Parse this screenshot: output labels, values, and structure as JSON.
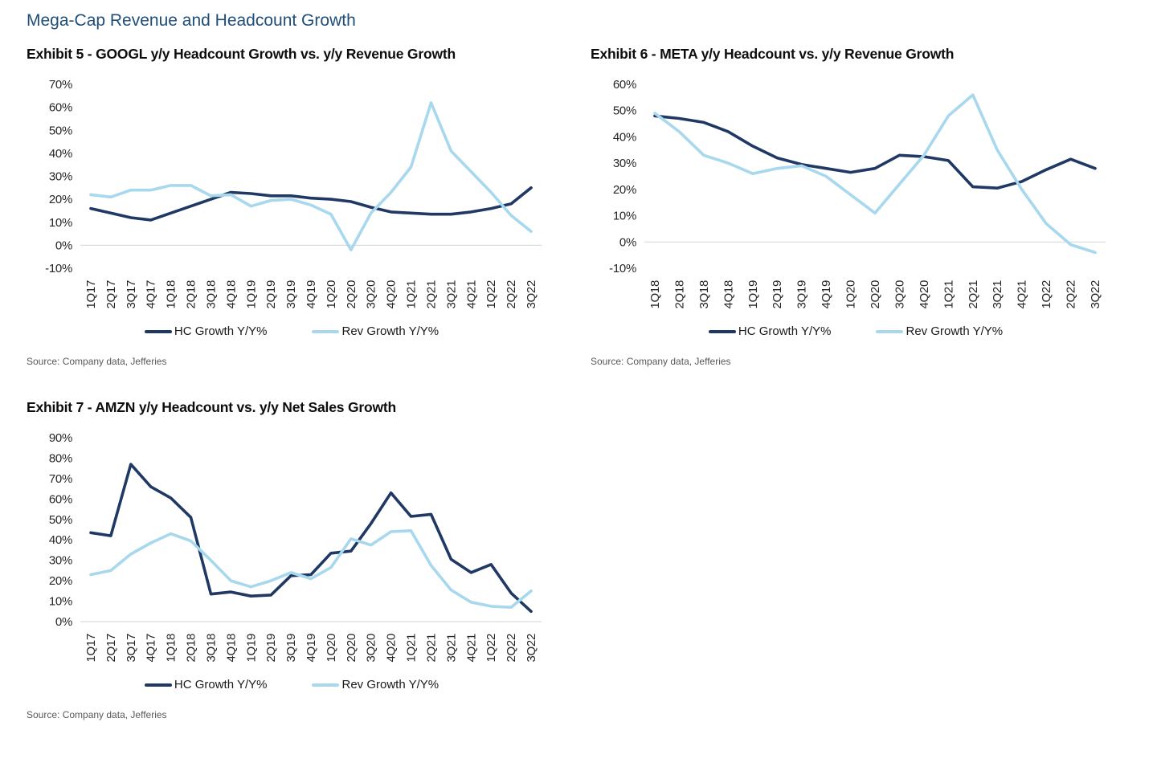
{
  "page": {
    "title": "Mega-Cap Revenue and Headcount Growth",
    "accent_color": "#1f4e79",
    "grid_color": "#d9d9d9"
  },
  "chart_data": [
    {
      "type": "line",
      "title": "Exhibit 5 - GOOGL y/y Headcount Growth vs. y/y Revenue Growth",
      "source": "Source: Company data, Jefferies",
      "legend_position": "bottom",
      "grid": "baseline at 0% only",
      "ylim": [
        -10,
        70
      ],
      "ystep": 10,
      "categories": [
        "1Q17",
        "2Q17",
        "3Q17",
        "4Q17",
        "1Q18",
        "2Q18",
        "3Q18",
        "4Q18",
        "1Q19",
        "2Q19",
        "3Q19",
        "4Q19",
        "1Q20",
        "2Q20",
        "3Q20",
        "4Q20",
        "1Q21",
        "2Q21",
        "3Q21",
        "4Q21",
        "1Q22",
        "2Q22",
        "3Q22"
      ],
      "series": [
        {
          "name": "HC Growth Y/Y%",
          "color": "#1f3864",
          "values": [
            16,
            14,
            12,
            11,
            14,
            17,
            20,
            23,
            22.5,
            21.5,
            21.5,
            20.5,
            20,
            19,
            16.5,
            14.5,
            14,
            13.5,
            13.5,
            14.5,
            16,
            18,
            25
          ]
        },
        {
          "name": "Rev Growth Y/Y%",
          "color": "#a7d8ee",
          "values": [
            22,
            21,
            24,
            24,
            26,
            26,
            21.5,
            22,
            17,
            19.5,
            20,
            17.5,
            13.5,
            -2,
            14,
            23,
            34,
            62,
            41,
            32,
            23,
            13,
            6
          ]
        }
      ]
    },
    {
      "type": "line",
      "title": "Exhibit 6 - META y/y Headcount vs. y/y Revenue Growth",
      "source": "Source: Company data, Jefferies",
      "legend_position": "bottom",
      "grid": "baseline at 0% only",
      "ylim": [
        -10,
        60
      ],
      "ystep": 10,
      "categories": [
        "1Q18",
        "2Q18",
        "3Q18",
        "4Q18",
        "1Q19",
        "2Q19",
        "3Q19",
        "4Q19",
        "1Q20",
        "2Q20",
        "3Q20",
        "4Q20",
        "1Q21",
        "2Q21",
        "3Q21",
        "4Q21",
        "1Q22",
        "2Q22",
        "3Q22"
      ],
      "series": [
        {
          "name": "HC Growth Y/Y%",
          "color": "#1f3864",
          "values": [
            48,
            47,
            45.5,
            42,
            36.5,
            32,
            29.5,
            28,
            26.5,
            28,
            33,
            32.5,
            31,
            21,
            20.5,
            23,
            27.5,
            31.5,
            28
          ]
        },
        {
          "name": "Rev Growth Y/Y%",
          "color": "#a7d8ee",
          "values": [
            49,
            42,
            33,
            30,
            26,
            28,
            29,
            25,
            18,
            11,
            22,
            33,
            48,
            56,
            35,
            20,
            7,
            -1,
            -4
          ]
        }
      ]
    },
    {
      "type": "line",
      "title": "Exhibit 7 - AMZN y/y Headcount vs. y/y Net Sales Growth",
      "source": "Source: Company data, Jefferies",
      "legend_position": "bottom",
      "grid": "baseline at 0% only",
      "ylim": [
        0,
        90
      ],
      "ystep": 10,
      "categories": [
        "1Q17",
        "2Q17",
        "3Q17",
        "4Q17",
        "1Q18",
        "2Q18",
        "3Q18",
        "4Q18",
        "1Q19",
        "2Q19",
        "3Q19",
        "4Q19",
        "1Q20",
        "2Q20",
        "3Q20",
        "4Q20",
        "1Q21",
        "2Q21",
        "3Q21",
        "4Q21",
        "1Q22",
        "2Q22",
        "3Q22"
      ],
      "series": [
        {
          "name": "HC Growth Y/Y%",
          "color": "#1f3864",
          "values": [
            43.5,
            42,
            77,
            66,
            60.5,
            51,
            13.5,
            14.5,
            12.5,
            13,
            22.5,
            23,
            33.5,
            34.5,
            48,
            63,
            51.5,
            52.5,
            30.5,
            24,
            28,
            14,
            5
          ]
        },
        {
          "name": "Rev Growth Y/Y%",
          "color": "#a7d8ee",
          "values": [
            23,
            25,
            33,
            38.5,
            43,
            39.5,
            30,
            20,
            17,
            20,
            24,
            21,
            26.5,
            40.5,
            37.5,
            44,
            44.5,
            27.5,
            15.5,
            9.5,
            7.5,
            7,
            15
          ]
        }
      ]
    }
  ]
}
